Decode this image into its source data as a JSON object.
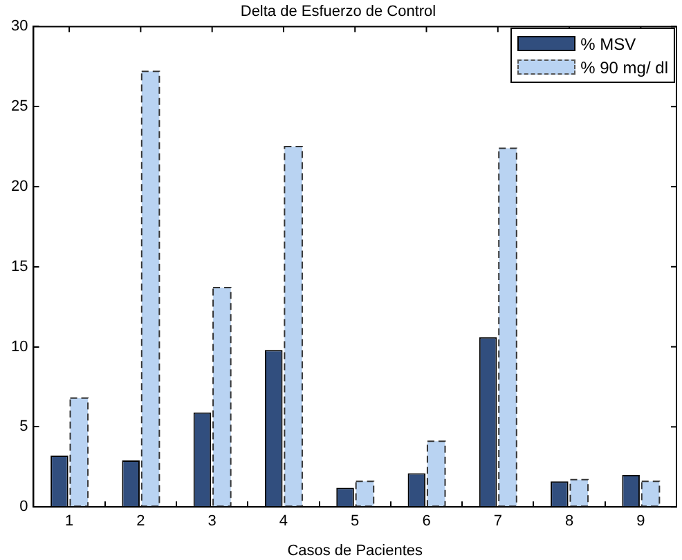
{
  "chart_data": {
    "type": "bar",
    "title": "Delta de Esfuerzo de Control",
    "xlabel": "Casos de Pacientes",
    "categories": [
      "1",
      "2",
      "3",
      "4",
      "5",
      "6",
      "7",
      "8",
      "9"
    ],
    "series": [
      {
        "name": "% MSV",
        "color": "#314e7e",
        "values": [
          3.2,
          2.9,
          5.9,
          9.8,
          1.2,
          2.1,
          10.6,
          1.6,
          2.0
        ]
      },
      {
        "name": "% 90 mg/ dl",
        "color": "#b9d3f2",
        "line_style": "dashed",
        "values": [
          6.8,
          27.2,
          13.7,
          22.5,
          1.6,
          4.1,
          22.4,
          1.7,
          1.6
        ]
      }
    ],
    "ylim": [
      0,
      30
    ],
    "yticks": [
      0,
      5,
      10,
      15,
      20,
      25,
      30
    ],
    "grid": false,
    "legend": "top right"
  }
}
